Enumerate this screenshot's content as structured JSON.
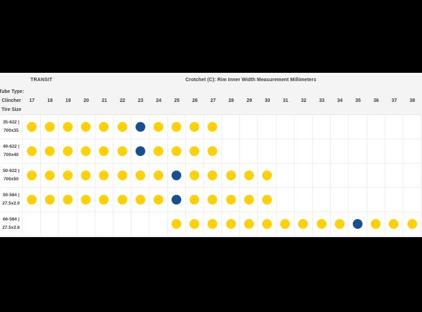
{
  "page": {
    "background": "#000000",
    "content_background": "#f4f4f4",
    "text_color": "#3b3b3b"
  },
  "chart_data": {
    "type": "heatmap",
    "title_left": "TRANSIT",
    "title_right": "Crotchet (C): Rim Inner Width Measurement Millimeters",
    "corner_header_lines": [
      "Tube Type:",
      "Clincher",
      "Tire Size"
    ],
    "columns": [
      17,
      18,
      19,
      20,
      21,
      22,
      23,
      24,
      25,
      26,
      27,
      28,
      29,
      30,
      31,
      32,
      33,
      34,
      35,
      36,
      37,
      38
    ],
    "rows": [
      {
        "etrto": "35-622 |",
        "size": "700x35",
        "compatible": [
          17,
          18,
          19,
          20,
          21,
          22,
          23,
          24,
          25,
          26,
          27
        ],
        "recommended": 23
      },
      {
        "etrto": "40-622 |",
        "size": "700x40",
        "compatible": [
          17,
          18,
          19,
          20,
          21,
          22,
          23,
          24,
          25,
          26,
          27
        ],
        "recommended": 23
      },
      {
        "etrto": "50-622 |",
        "size": "700x50",
        "compatible": [
          17,
          18,
          19,
          20,
          21,
          22,
          23,
          24,
          25,
          26,
          27,
          28,
          29,
          30
        ],
        "recommended": 25
      },
      {
        "etrto": "50-584 |",
        "size": "27.5x2.0",
        "compatible": [
          17,
          18,
          19,
          20,
          21,
          22,
          23,
          24,
          25,
          26,
          27,
          28,
          29,
          30
        ],
        "recommended": 25
      },
      {
        "etrto": "66-584 |",
        "size": "27.5x2.6",
        "compatible": [
          25,
          26,
          27,
          28,
          29,
          30,
          31,
          32,
          33,
          34,
          35,
          36,
          37,
          38
        ],
        "recommended": 35
      }
    ],
    "dot_colors": {
      "compatible": "#ffd100",
      "recommended": "#17508d"
    }
  }
}
